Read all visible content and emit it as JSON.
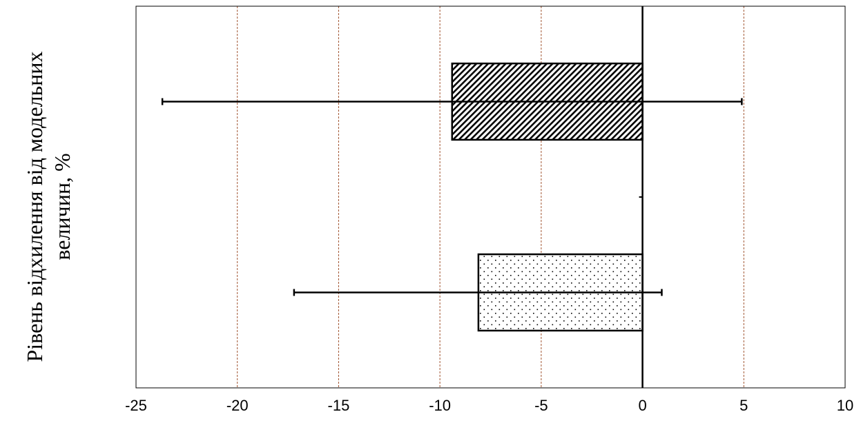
{
  "chart_data": {
    "type": "bar",
    "orientation": "horizontal",
    "title": "",
    "xlabel": "",
    "ylabel_lines": [
      "Рівень відхилення від модельних",
      "величин, %"
    ],
    "xlim": [
      -25,
      10
    ],
    "xticks": [
      -25,
      -20,
      -15,
      -10,
      -5,
      0,
      5,
      10
    ],
    "grid": "vertical dashed",
    "categories": [
      "",
      ""
    ],
    "series": [
      {
        "values": [
          -9.4,
          -8.1
        ],
        "err_low": [
          -23.7,
          -17.2
        ],
        "err_high": [
          4.9,
          0.95
        ],
        "patterns": [
          "diagonal-hatch",
          "dots"
        ]
      }
    ]
  },
  "colors": {
    "grid": "#a0522d",
    "bar_stroke": "#000000",
    "background": "#ffffff"
  }
}
